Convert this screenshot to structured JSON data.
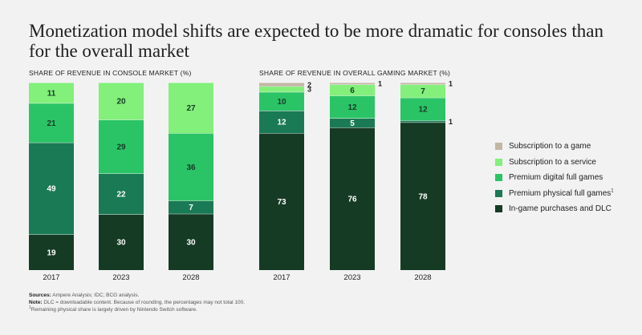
{
  "title": "Monetization model shifts are expected to be more dramatic for consoles than for the overall market",
  "colors": {
    "subscription_game": "#c2b7a5",
    "subscription_service": "#82f07a",
    "premium_digital": "#2ac466",
    "premium_physical": "#1a7a55",
    "in_game": "#163b25"
  },
  "legend": [
    {
      "key": "subscription_game",
      "label": "Subscription to a game",
      "sup": ""
    },
    {
      "key": "subscription_service",
      "label": "Subscription to a service",
      "sup": ""
    },
    {
      "key": "premium_digital",
      "label": "Premium digital full games",
      "sup": ""
    },
    {
      "key": "premium_physical",
      "label": "Premium physical full games",
      "sup": "1"
    },
    {
      "key": "in_game",
      "label": "In-game purchases and DLC",
      "sup": ""
    }
  ],
  "chart_data": [
    {
      "type": "bar",
      "stacked": true,
      "title": "SHARE OF REVENUE IN CONSOLE MARKET (%)",
      "categories": [
        "2017",
        "2023",
        "2028"
      ],
      "ylim": [
        0,
        100
      ],
      "series": [
        {
          "name": "In-game purchases and DLC",
          "key": "in_game",
          "values": [
            19,
            30,
            30
          ]
        },
        {
          "name": "Premium physical full games",
          "key": "premium_physical",
          "values": [
            49,
            22,
            7
          ]
        },
        {
          "name": "Premium digital full games",
          "key": "premium_digital",
          "values": [
            21,
            29,
            36
          ]
        },
        {
          "name": "Subscription to a service",
          "key": "subscription_service",
          "values": [
            11,
            20,
            27
          ]
        }
      ]
    },
    {
      "type": "bar",
      "stacked": true,
      "title": "SHARE OF REVENUE IN OVERALL GAMING MARKET (%)",
      "categories": [
        "2017",
        "2023",
        "2028"
      ],
      "ylim": [
        0,
        100
      ],
      "series": [
        {
          "name": "In-game purchases and DLC",
          "key": "in_game",
          "values": [
            73,
            76,
            78
          ]
        },
        {
          "name": "Premium physical full games",
          "key": "premium_physical",
          "values": [
            12,
            5,
            1
          ]
        },
        {
          "name": "Premium digital full games",
          "key": "premium_digital",
          "values": [
            10,
            12,
            12
          ]
        },
        {
          "name": "Subscription to a service",
          "key": "subscription_service",
          "values": [
            3,
            6,
            7
          ]
        },
        {
          "name": "Subscription to a game",
          "key": "subscription_game",
          "values": [
            2,
            1,
            1
          ]
        }
      ]
    }
  ],
  "footer": {
    "sources_label": "Sources:",
    "sources_text": " Ampere Analysis; IDC; BCG analysis.",
    "note_label": "Note:",
    "note_text": " DLC = downloadable content. Because of rounding, the percentages may not total 100.",
    "footnote_mark": "1",
    "footnote_text": "Remaining physical share is largely driven by Nintendo Switch software."
  }
}
